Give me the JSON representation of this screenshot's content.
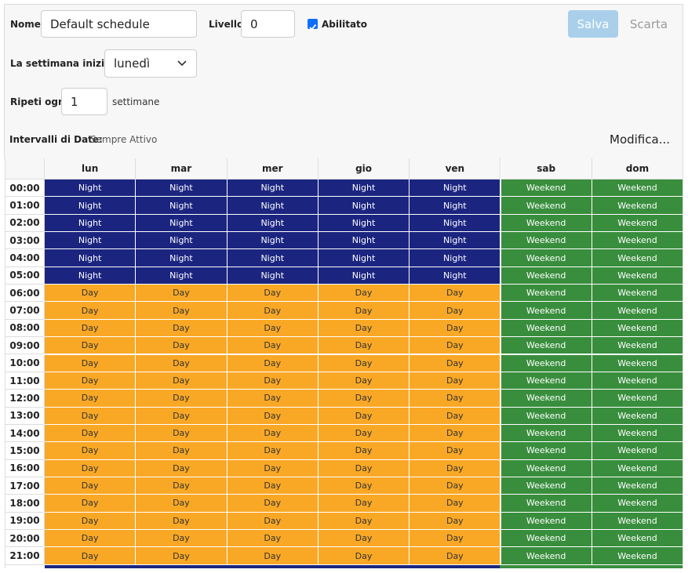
{
  "form": {
    "name_label": "Nome",
    "name_value": "Default schedule",
    "level_label": "Livello",
    "level_value": "0",
    "enabled_label": "Abilitato",
    "enabled": true,
    "save_button": "Salva",
    "discard_button": "Scarta",
    "week_start_label": "La settimana inizia il",
    "week_start_value": "lunedì",
    "repeat_label": "Ripeti ogni",
    "repeat_value": "1",
    "repeat_unit": "settimane",
    "date_ranges_label": "Intervalli di Date:",
    "date_ranges_value": "Sempre Attivo",
    "edit_link": "Modifica..."
  },
  "table": {
    "columns": [
      "lun",
      "mar",
      "mer",
      "gio",
      "ven",
      "sab",
      "dom"
    ],
    "cell_colors": {
      "Night": "#1b2580",
      "Day": "#f9a826",
      "Weekend": "#398e3d"
    },
    "cell_text_colors": {
      "Night": "#ffffff",
      "Day": "#333333",
      "Weekend": "#ffffff"
    },
    "rows": [
      {
        "time": "00:00",
        "cells": [
          "Night",
          "Night",
          "Night",
          "Night",
          "Night",
          "Weekend",
          "Weekend"
        ]
      },
      {
        "time": "01:00",
        "cells": [
          "Night",
          "Night",
          "Night",
          "Night",
          "Night",
          "Weekend",
          "Weekend"
        ]
      },
      {
        "time": "02:00",
        "cells": [
          "Night",
          "Night",
          "Night",
          "Night",
          "Night",
          "Weekend",
          "Weekend"
        ]
      },
      {
        "time": "03:00",
        "cells": [
          "Night",
          "Night",
          "Night",
          "Night",
          "Night",
          "Weekend",
          "Weekend"
        ]
      },
      {
        "time": "04:00",
        "cells": [
          "Night",
          "Night",
          "Night",
          "Night",
          "Night",
          "Weekend",
          "Weekend"
        ]
      },
      {
        "time": "05:00",
        "cells": [
          "Night",
          "Night",
          "Night",
          "Night",
          "Night",
          "Weekend",
          "Weekend"
        ]
      },
      {
        "time": "06:00",
        "cells": [
          "Day",
          "Day",
          "Day",
          "Day",
          "Day",
          "Weekend",
          "Weekend"
        ]
      },
      {
        "time": "07:00",
        "cells": [
          "Day",
          "Day",
          "Day",
          "Day",
          "Day",
          "Weekend",
          "Weekend"
        ]
      },
      {
        "time": "08:00",
        "cells": [
          "Day",
          "Day",
          "Day",
          "Day",
          "Day",
          "Weekend",
          "Weekend"
        ]
      },
      {
        "time": "09:00",
        "cells": [
          "Day",
          "Day",
          "Day",
          "Day",
          "Day",
          "Weekend",
          "Weekend"
        ]
      },
      {
        "time": "10:00",
        "cells": [
          "Day",
          "Day",
          "Day",
          "Day",
          "Day",
          "Weekend",
          "Weekend"
        ]
      },
      {
        "time": "11:00",
        "cells": [
          "Day",
          "Day",
          "Day",
          "Day",
          "Day",
          "Weekend",
          "Weekend"
        ]
      },
      {
        "time": "12:00",
        "cells": [
          "Day",
          "Day",
          "Day",
          "Day",
          "Day",
          "Weekend",
          "Weekend"
        ]
      },
      {
        "time": "13:00",
        "cells": [
          "Day",
          "Day",
          "Day",
          "Day",
          "Day",
          "Weekend",
          "Weekend"
        ]
      },
      {
        "time": "14:00",
        "cells": [
          "Day",
          "Day",
          "Day",
          "Day",
          "Day",
          "Weekend",
          "Weekend"
        ]
      },
      {
        "time": "15:00",
        "cells": [
          "Day",
          "Day",
          "Day",
          "Day",
          "Day",
          "Weekend",
          "Weekend"
        ]
      },
      {
        "time": "16:00",
        "cells": [
          "Day",
          "Day",
          "Day",
          "Day",
          "Day",
          "Weekend",
          "Weekend"
        ]
      },
      {
        "time": "17:00",
        "cells": [
          "Day",
          "Day",
          "Day",
          "Day",
          "Day",
          "Weekend",
          "Weekend"
        ]
      },
      {
        "time": "18:00",
        "cells": [
          "Day",
          "Day",
          "Day",
          "Day",
          "Day",
          "Weekend",
          "Weekend"
        ]
      },
      {
        "time": "19:00",
        "cells": [
          "Day",
          "Day",
          "Day",
          "Day",
          "Day",
          "Weekend",
          "Weekend"
        ]
      },
      {
        "time": "20:00",
        "cells": [
          "Day",
          "Day",
          "Day",
          "Day",
          "Day",
          "Weekend",
          "Weekend"
        ]
      },
      {
        "time": "21:00",
        "cells": [
          "Day",
          "Day",
          "Day",
          "Day",
          "Day",
          "Weekend",
          "Weekend"
        ]
      }
    ]
  }
}
